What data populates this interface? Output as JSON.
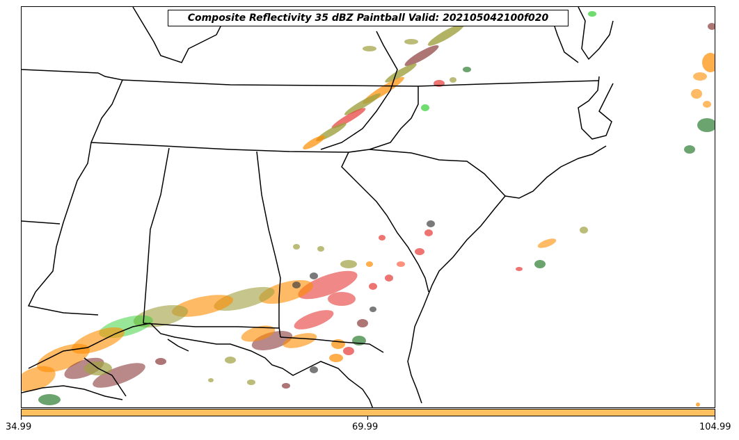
{
  "title": "Composite Reflectivity 35 dBZ Paintball Valid: 202105042100f020",
  "colorbar": {
    "ticks": [
      "34.99",
      "69.99",
      "104.99"
    ],
    "fill_color": "#ffc060"
  },
  "colors": {
    "state_lines": "#000000",
    "paintball_members": [
      "#2e7d32",
      "#e53935",
      "#ff8c00",
      "#a0a040",
      "#8b3a3a",
      "#32cd32",
      "#ff6347",
      "#424242",
      "#d2b48c"
    ]
  }
}
